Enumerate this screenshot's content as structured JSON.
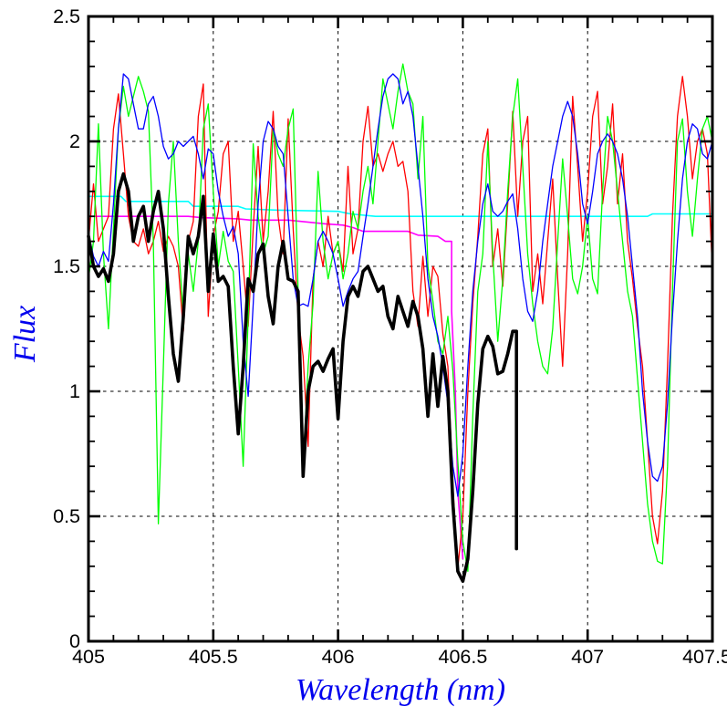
{
  "chart_data": {
    "type": "line",
    "title": "",
    "xlabel": "Wavelength (nm)",
    "ylabel": "Flux",
    "xlim": [
      405,
      407.5
    ],
    "ylim": [
      0,
      2.5
    ],
    "x_major_ticks": [
      405,
      405.5,
      406,
      406.5,
      407,
      407.5
    ],
    "x_tick_labels": [
      "405",
      "405.5",
      "406",
      "406.5",
      "407",
      "407.5"
    ],
    "x_minor_step": 0.1,
    "y_major_ticks": [
      0,
      0.5,
      1,
      1.5,
      2,
      2.5
    ],
    "y_tick_labels": [
      "0",
      "0.5",
      "1",
      "1.5",
      "2",
      "2.5"
    ],
    "y_minor_step": 0.1,
    "grid": {
      "x": [
        405.5,
        406,
        406.5,
        407
      ],
      "y": [
        0.5,
        1,
        1.5,
        2
      ],
      "style": "dashed"
    },
    "background": "#ffffff",
    "axis_color": "#000000",
    "tick_label_color": "#000000",
    "label_color": "#0000ee",
    "legend": "none",
    "series": [
      {
        "name": "cyan-flat-continuum",
        "color": "#00ffff",
        "width": 1.6,
        "points": [
          [
            405.0,
            1.78
          ],
          [
            405.13,
            1.78
          ],
          [
            405.15,
            1.76
          ],
          [
            405.4,
            1.76
          ],
          [
            405.42,
            1.74
          ],
          [
            405.6,
            1.74
          ],
          [
            405.63,
            1.73
          ],
          [
            405.75,
            1.725
          ],
          [
            406.0,
            1.72
          ],
          [
            406.05,
            1.71
          ],
          [
            406.15,
            1.7
          ],
          [
            407.24,
            1.7
          ],
          [
            407.26,
            1.71
          ],
          [
            407.5,
            1.71
          ]
        ]
      },
      {
        "name": "magenta-step-continuum",
        "color": "#ff00ff",
        "width": 1.6,
        "points": [
          [
            405.0,
            1.7
          ],
          [
            405.4,
            1.7
          ],
          [
            405.45,
            1.695
          ],
          [
            405.6,
            1.69
          ],
          [
            405.65,
            1.685
          ],
          [
            405.8,
            1.685
          ],
          [
            405.85,
            1.68
          ],
          [
            405.95,
            1.67
          ],
          [
            406.02,
            1.665
          ],
          [
            406.06,
            1.655
          ],
          [
            406.1,
            1.64
          ],
          [
            406.28,
            1.64
          ],
          [
            406.32,
            1.625
          ],
          [
            406.4,
            1.62
          ],
          [
            406.43,
            1.6
          ],
          [
            406.455,
            1.6
          ],
          [
            406.455,
            1.32
          ],
          [
            406.47,
            1.0
          ],
          [
            406.48,
            0.6
          ],
          [
            406.5,
            0.33
          ]
        ]
      },
      {
        "name": "red-noisy-spectrum",
        "color": "#ff0000",
        "width": 1.3,
        "x_start": 405.0,
        "x_step": 0.02,
        "y": [
          1.6,
          1.83,
          1.6,
          1.65,
          1.7,
          2.05,
          2.19,
          1.95,
          1.7,
          1.6,
          1.58,
          1.65,
          1.55,
          1.6,
          1.68,
          1.56,
          1.62,
          1.58,
          1.5,
          1.24,
          1.6,
          1.68,
          2.1,
          2.23,
          1.3,
          1.62,
          1.72,
          1.95,
          2.0,
          1.6,
          1.72,
          1.5,
          1.26,
          1.65,
          1.98,
          1.6,
          1.8,
          2.12,
          1.7,
          1.55,
          2.09,
          1.65,
          1.3,
          1.14,
          0.78,
          1.45,
          1.6,
          1.5,
          1.7,
          1.55,
          1.6,
          1.48,
          1.9,
          1.55,
          1.65,
          2.0,
          2.14,
          1.9,
          1.95,
          1.88,
          1.95,
          2.0,
          1.9,
          1.92,
          1.8,
          1.4,
          1.26,
          1.54,
          1.3,
          1.5,
          1.46,
          1.23,
          1.1,
          0.62,
          0.29,
          0.5,
          1.0,
          1.35,
          1.62,
          1.95,
          2.05,
          1.5,
          1.65,
          1.42,
          1.75,
          2.12,
          1.7,
          2.0,
          2.1,
          1.4,
          1.55,
          1.35,
          1.6,
          1.85,
          1.45,
          1.1,
          1.55,
          2.18,
          1.9,
          1.6,
          1.8,
          2.1,
          2.2,
          1.75,
          1.9,
          2.15,
          1.75,
          1.95,
          1.6,
          1.45,
          1.26,
          1.1,
          0.8,
          0.5,
          0.39,
          0.6,
          1.1,
          1.7,
          2.1,
          2.26,
          2.1,
          1.85,
          2.0,
          2.05,
          1.95,
          1.48
        ]
      },
      {
        "name": "green-noisy-spectrum",
        "color": "#00ff00",
        "width": 1.3,
        "x_start": 405.0,
        "x_step": 0.02,
        "y": [
          1.45,
          1.6,
          2.07,
          1.55,
          1.25,
          1.65,
          2.05,
          2.22,
          2.1,
          2.18,
          2.26,
          2.2,
          2.12,
          1.6,
          0.47,
          1.1,
          1.75,
          2.0,
          1.6,
          1.3,
          1.55,
          1.4,
          1.6,
          2.05,
          2.15,
          1.8,
          1.5,
          1.64,
          1.52,
          1.48,
          1.1,
          0.7,
          1.3,
          1.99,
          1.7,
          1.55,
          1.62,
          2.05,
          1.95,
          1.9,
          2.05,
          2.13,
          1.4,
          0.7,
          1.1,
          1.35,
          1.88,
          1.6,
          1.45,
          1.55,
          1.6,
          1.45,
          1.55,
          1.72,
          1.65,
          1.8,
          1.9,
          1.75,
          2.0,
          2.25,
          2.15,
          2.05,
          2.2,
          2.31,
          2.2,
          2.15,
          1.85,
          2.1,
          1.5,
          1.36,
          1.2,
          1.15,
          1.3,
          1.08,
          0.72,
          0.4,
          0.28,
          0.9,
          1.4,
          1.55,
          2.0,
          1.55,
          1.2,
          1.45,
          1.8,
          2.1,
          2.25,
          1.9,
          1.55,
          1.35,
          1.2,
          1.1,
          1.07,
          1.25,
          1.6,
          1.93,
          1.7,
          1.45,
          1.39,
          1.5,
          1.7,
          1.45,
          1.39,
          1.8,
          2.1,
          2.0,
          1.8,
          1.6,
          1.4,
          1.3,
          1.05,
          0.8,
          0.55,
          0.4,
          0.32,
          0.31,
          0.7,
          1.4,
          2.0,
          2.09,
          1.8,
          1.62,
          1.85,
          2.05,
          2.1,
          2.0
        ]
      },
      {
        "name": "blue-smooth-spectrum",
        "color": "#0000ff",
        "width": 1.3,
        "x_start": 405.0,
        "x_step": 0.02,
        "y": [
          1.63,
          1.54,
          1.5,
          1.56,
          1.52,
          1.75,
          2.05,
          2.27,
          2.25,
          2.15,
          2.05,
          2.05,
          2.15,
          2.18,
          2.1,
          1.98,
          1.93,
          1.95,
          2.0,
          1.98,
          2.0,
          2.02,
          1.95,
          1.85,
          1.97,
          1.95,
          1.8,
          1.7,
          1.62,
          1.66,
          1.55,
          1.2,
          0.98,
          1.35,
          1.75,
          2.0,
          2.08,
          2.05,
          1.98,
          1.95,
          1.7,
          1.45,
          1.34,
          1.35,
          1.34,
          1.45,
          1.6,
          1.64,
          1.6,
          1.55,
          1.45,
          1.34,
          1.4,
          1.45,
          1.48,
          1.62,
          1.75,
          1.9,
          2.05,
          2.18,
          2.25,
          2.27,
          2.25,
          2.15,
          2.2,
          2.1,
          1.9,
          1.7,
          1.45,
          1.3,
          1.22,
          1.1,
          0.95,
          0.7,
          0.58,
          0.75,
          1.1,
          1.4,
          1.6,
          1.75,
          1.83,
          1.72,
          1.7,
          1.72,
          1.76,
          1.79,
          1.65,
          1.45,
          1.32,
          1.28,
          1.4,
          1.6,
          1.75,
          1.9,
          2.0,
          2.1,
          2.16,
          2.1,
          1.95,
          1.75,
          1.67,
          1.8,
          1.95,
          2.0,
          2.03,
          2.0,
          1.95,
          1.85,
          1.7,
          1.5,
          1.3,
          1.0,
          0.8,
          0.66,
          0.64,
          0.7,
          0.95,
          1.3,
          1.6,
          1.85,
          2.0,
          2.07,
          2.05,
          1.95,
          1.93,
          2.0
        ]
      },
      {
        "name": "black-thick-observed-spectrum",
        "color": "#000000",
        "width": 3.6,
        "x_start": 405.0,
        "x_step": 0.02,
        "y": [
          1.62,
          1.5,
          1.46,
          1.49,
          1.44,
          1.55,
          1.8,
          1.87,
          1.8,
          1.6,
          1.7,
          1.74,
          1.6,
          1.72,
          1.8,
          1.65,
          1.38,
          1.15,
          1.04,
          1.3,
          1.62,
          1.55,
          1.62,
          1.78,
          1.4,
          1.63,
          1.44,
          1.46,
          1.42,
          1.1,
          0.83,
          1.1,
          1.45,
          1.4,
          1.55,
          1.59,
          1.38,
          1.27,
          1.5,
          1.6,
          1.45,
          1.44,
          1.4,
          0.66,
          1.0,
          1.1,
          1.12,
          1.08,
          1.13,
          1.17,
          0.89,
          1.2,
          1.38,
          1.42,
          1.38,
          1.48,
          1.5,
          1.45,
          1.4,
          1.42,
          1.3,
          1.25,
          1.38,
          1.32,
          1.26,
          1.36,
          1.3,
          1.17,
          0.9,
          1.15,
          0.94,
          1.14,
          1.0,
          0.55,
          0.28,
          0.24,
          0.33,
          0.6,
          0.95,
          1.17,
          1.22,
          1.18,
          1.07,
          1.08,
          1.15,
          1.24
        ],
        "extra_points": [
          [
            406.715,
            1.24
          ],
          [
            406.715,
            0.37
          ]
        ]
      }
    ]
  }
}
